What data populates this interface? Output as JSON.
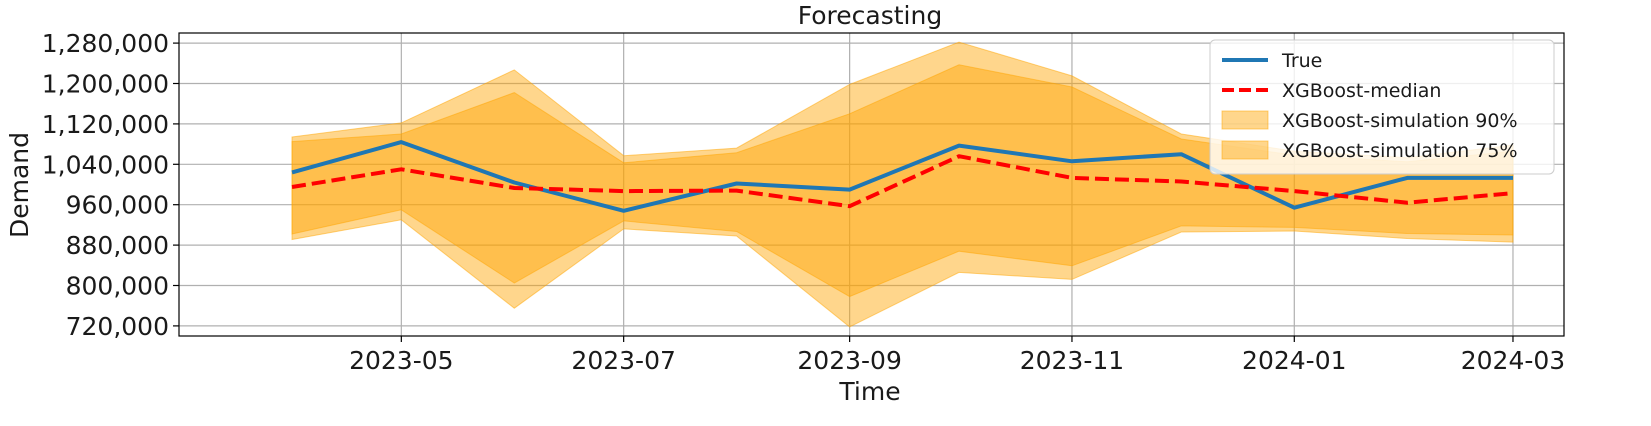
{
  "chart_data": {
    "type": "line",
    "title": "Forecasting",
    "xlabel": "Time",
    "ylabel": "Demand",
    "grid": true,
    "legend_position": "top-right",
    "x": [
      "2023-04-01",
      "2023-05-01",
      "2023-06-01",
      "2023-07-01",
      "2023-08-01",
      "2023-09-01",
      "2023-10-01",
      "2023-11-01",
      "2023-12-01",
      "2024-01-01",
      "2024-02-01",
      "2024-03-01"
    ],
    "xlim": [
      "2023-03-01",
      "2024-03-15"
    ],
    "ylim": [
      700000,
      1300000
    ],
    "x_ticks": [
      "2023-05",
      "2023-07",
      "2023-09",
      "2023-11",
      "2024-01",
      "2024-03"
    ],
    "x_tick_dates": [
      "2023-05-01",
      "2023-07-01",
      "2023-09-01",
      "2023-11-01",
      "2024-01-01",
      "2024-03-01"
    ],
    "y_ticks": [
      720000,
      800000,
      880000,
      960000,
      1040000,
      1120000,
      1200000,
      1280000
    ],
    "y_tick_labels": [
      "720,000",
      "800,000",
      "880,000",
      "960,000",
      "1,040,000",
      "1,120,000",
      "1,200,000",
      "1,280,000"
    ],
    "series": [
      {
        "name": "True",
        "kind": "line",
        "color": "#1f77b4",
        "dash": "solid",
        "values": [
          1024000,
          1084000,
          1004000,
          948000,
          1002000,
          990000,
          1077000,
          1046000,
          1060000,
          954000,
          1013000,
          1013000
        ]
      },
      {
        "name": "XGBoost-median",
        "kind": "line",
        "color": "#ff0000",
        "dash": "dashed",
        "values": [
          995000,
          1030000,
          993000,
          987000,
          988000,
          957000,
          1056000,
          1013000,
          1006000,
          987000,
          964000,
          983000
        ]
      },
      {
        "name": "XGBoost-simulation 90%",
        "kind": "band",
        "color": "#ffa500",
        "opacity": 0.45,
        "lower": [
          891000,
          930000,
          755000,
          912000,
          898000,
          718000,
          826000,
          812000,
          906000,
          908000,
          893000,
          886000
        ],
        "upper": [
          1094000,
          1122000,
          1227000,
          1057000,
          1072000,
          1198000,
          1282000,
          1215000,
          1100000,
          1066000,
          1053000,
          1078000
        ]
      },
      {
        "name": "XGBoost-simulation 75%",
        "kind": "band",
        "color": "#ffa500",
        "opacity": 0.45,
        "lower": [
          902000,
          950000,
          805000,
          928000,
          907000,
          778000,
          868000,
          839000,
          918000,
          915000,
          903000,
          900000
        ],
        "upper": [
          1085000,
          1100000,
          1182000,
          1043000,
          1063000,
          1140000,
          1237000,
          1193000,
          1090000,
          1058000,
          1045000,
          1066000
        ]
      }
    ]
  }
}
